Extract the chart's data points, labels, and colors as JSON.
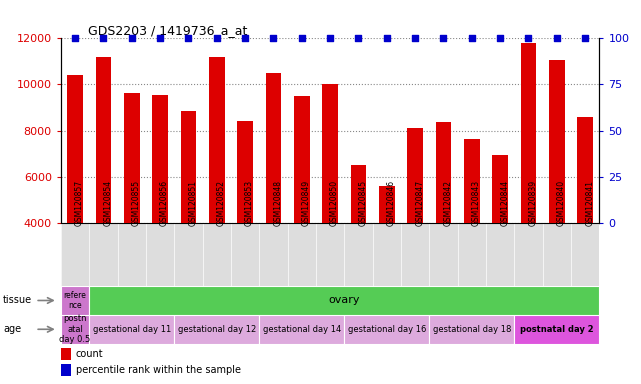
{
  "title": "GDS2203 / 1419736_a_at",
  "samples": [
    "GSM120857",
    "GSM120854",
    "GSM120855",
    "GSM120856",
    "GSM120851",
    "GSM120852",
    "GSM120853",
    "GSM120848",
    "GSM120849",
    "GSM120850",
    "GSM120845",
    "GSM120846",
    "GSM120847",
    "GSM120842",
    "GSM120843",
    "GSM120844",
    "GSM120839",
    "GSM120840",
    "GSM120841"
  ],
  "counts": [
    10400,
    11200,
    9650,
    9550,
    8850,
    11200,
    8400,
    10500,
    9500,
    10000,
    6500,
    5600,
    8100,
    8350,
    7650,
    6950,
    11800,
    11050,
    8600
  ],
  "percentiles": [
    100,
    100,
    100,
    100,
    100,
    100,
    100,
    100,
    100,
    100,
    100,
    100,
    100,
    100,
    100,
    100,
    100,
    100,
    100
  ],
  "ylim": [
    4000,
    12000
  ],
  "y2lim": [
    0,
    100
  ],
  "bar_color": "#dd0000",
  "percentile_color": "#0000cc",
  "grid_color": "#888888",
  "tissue_ref_color": "#cc77cc",
  "tissue_ovary_color": "#55cc55",
  "age_postnatal_color": "#cc77cc",
  "age_gest_color": "#ddaadd",
  "age_postnatal2_color": "#dd55dd",
  "tissue_groups": [
    {
      "label": "refere\nnce",
      "start": 0,
      "end": 1,
      "color": "#cc77cc"
    },
    {
      "label": "ovary",
      "start": 1,
      "end": 19,
      "color": "#55cc55"
    }
  ],
  "age_groups": [
    {
      "label": "postn\natal\nday 0.5",
      "start": 0,
      "end": 1,
      "color": "#cc77cc"
    },
    {
      "label": "gestational day 11",
      "start": 1,
      "end": 4,
      "color": "#ddaadd"
    },
    {
      "label": "gestational day 12",
      "start": 4,
      "end": 7,
      "color": "#ddaadd"
    },
    {
      "label": "gestational day 14",
      "start": 7,
      "end": 10,
      "color": "#ddaadd"
    },
    {
      "label": "gestational day 16",
      "start": 10,
      "end": 13,
      "color": "#ddaadd"
    },
    {
      "label": "gestational day 18",
      "start": 13,
      "end": 16,
      "color": "#ddaadd"
    },
    {
      "label": "postnatal day 2",
      "start": 16,
      "end": 19,
      "color": "#dd55dd"
    }
  ],
  "yticks": [
    4000,
    6000,
    8000,
    10000,
    12000
  ],
  "y2ticks": [
    0,
    25,
    50,
    75,
    100
  ],
  "bar_width": 0.55,
  "legend_count_color": "#dd0000",
  "legend_pct_color": "#0000cc",
  "xlabel_bg": "#dddddd",
  "spine_color": "#000000"
}
